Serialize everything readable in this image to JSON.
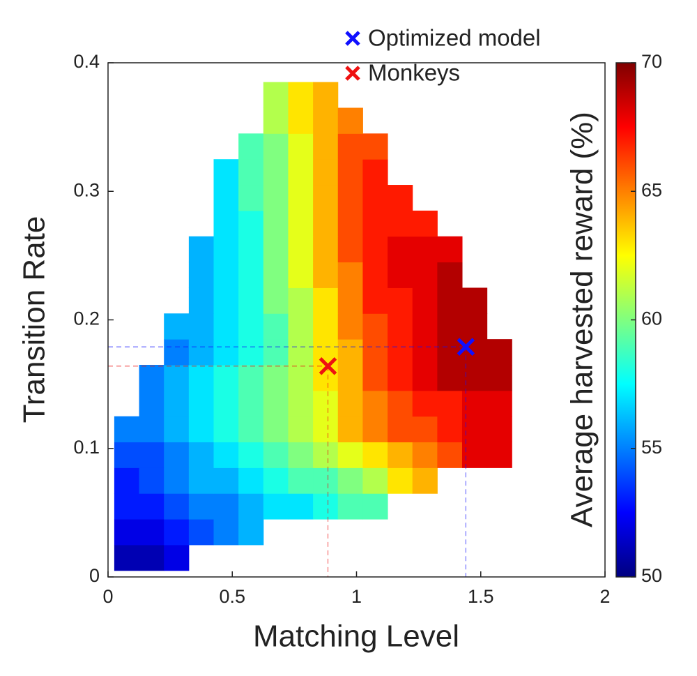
{
  "chart_data": {
    "type": "heatmap",
    "xlabel": "Matching Level",
    "ylabel": "Transition Rate",
    "colorbar_label": "Average harvested reward (%)",
    "colormap": "jet",
    "xlim": [
      0,
      2
    ],
    "xticks": [
      0,
      0.5,
      1,
      1.5,
      2
    ],
    "ylim": [
      0,
      0.4
    ],
    "yticks": [
      0,
      0.1,
      0.2,
      0.3,
      0.4
    ],
    "zlim": [
      50,
      70
    ],
    "zticks": [
      50,
      55,
      60,
      65,
      70
    ],
    "x": [
      0.075,
      0.175,
      0.275,
      0.375,
      0.475,
      0.575,
      0.675,
      0.775,
      0.875,
      0.975,
      1.075,
      1.175,
      1.275,
      1.375,
      1.475,
      1.575
    ],
    "y": [
      0.015,
      0.035,
      0.055,
      0.075,
      0.095,
      0.115,
      0.135,
      0.155,
      0.175,
      0.195,
      0.215,
      0.235,
      0.255,
      0.275,
      0.295,
      0.315,
      0.335,
      0.355,
      0.375
    ],
    "z": [
      [
        51,
        51,
        52,
        null,
        null,
        null,
        null,
        null,
        null,
        null,
        null,
        null,
        null,
        null,
        null,
        null
      ],
      [
        52,
        52,
        53,
        54,
        55,
        56,
        null,
        null,
        null,
        null,
        null,
        null,
        null,
        null,
        null,
        null
      ],
      [
        53,
        53,
        54,
        55,
        55,
        56,
        57,
        57,
        58,
        59,
        59,
        null,
        null,
        null,
        null,
        null
      ],
      [
        53,
        54,
        55,
        56,
        56,
        57,
        58,
        59,
        59,
        60,
        61,
        63,
        64,
        null,
        null,
        null
      ],
      [
        54,
        54,
        55,
        56,
        57,
        58,
        59,
        60,
        61,
        62,
        63,
        64,
        65,
        66,
        68,
        68
      ],
      [
        55,
        55,
        56,
        57,
        58,
        59,
        60,
        61,
        62,
        64,
        65,
        66,
        66,
        67,
        68,
        68
      ],
      [
        null,
        55,
        56,
        57,
        58,
        59,
        60,
        61,
        62,
        64,
        65,
        66,
        67,
        67,
        68,
        68
      ],
      [
        null,
        55,
        56,
        57,
        58,
        59,
        60,
        61,
        63,
        64,
        66,
        67,
        68,
        69,
        69,
        69
      ],
      [
        null,
        null,
        55,
        56,
        57,
        58,
        59,
        61,
        63,
        64,
        66,
        67,
        68,
        69,
        69,
        69
      ],
      [
        null,
        null,
        56,
        56,
        57,
        58,
        59,
        61,
        63,
        65,
        66,
        67,
        68,
        69,
        69,
        null
      ],
      [
        null,
        null,
        null,
        56,
        57,
        58,
        60,
        61,
        63,
        65,
        67,
        67,
        68,
        69,
        69,
        null
      ],
      [
        null,
        null,
        null,
        56,
        57,
        58,
        60,
        62,
        64,
        65,
        67,
        68,
        68,
        69,
        null,
        null
      ],
      [
        null,
        null,
        null,
        56,
        57,
        58,
        60,
        62,
        64,
        66,
        67,
        68,
        68,
        68,
        null,
        null
      ],
      [
        null,
        null,
        null,
        null,
        57,
        58,
        60,
        62,
        64,
        66,
        67,
        67,
        67,
        null,
        null,
        null
      ],
      [
        null,
        null,
        null,
        null,
        57,
        59,
        60,
        62,
        64,
        66,
        67,
        67,
        null,
        null,
        null,
        null
      ],
      [
        null,
        null,
        null,
        null,
        57,
        59,
        60,
        62,
        64,
        66,
        67,
        null,
        null,
        null,
        null,
        null
      ],
      [
        null,
        null,
        null,
        null,
        null,
        59,
        60,
        62,
        64,
        66,
        66,
        null,
        null,
        null,
        null,
        null
      ],
      [
        null,
        null,
        null,
        null,
        null,
        null,
        61,
        63,
        64,
        65,
        null,
        null,
        null,
        null,
        null,
        null
      ],
      [
        null,
        null,
        null,
        null,
        null,
        null,
        61,
        63,
        64,
        null,
        null,
        null,
        null,
        null,
        null,
        null
      ]
    ],
    "points": [
      {
        "name": "Optimized model",
        "color": "#1010ff",
        "x": 1.44,
        "y": 0.179
      },
      {
        "name": "Monkeys",
        "color": "#ee1111",
        "x": 0.885,
        "y": 0.164
      }
    ]
  }
}
